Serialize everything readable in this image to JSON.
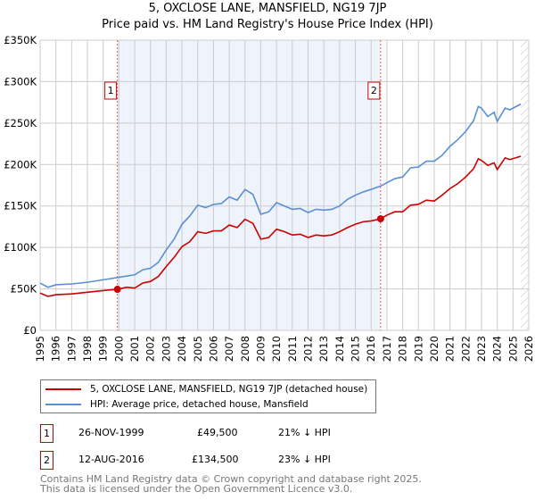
{
  "chart_data": {
    "type": "line",
    "title": "5, OXCLOSE LANE, MANSFIELD, NG19 7JP",
    "subtitle": "Price paid vs. HM Land Registry's House Price Index (HPI)",
    "xlim": [
      1995,
      2026
    ],
    "ylim": [
      0,
      350000
    ],
    "x_ticks": [
      "1995",
      "1996",
      "1997",
      "1998",
      "1999",
      "2000",
      "2001",
      "2002",
      "2003",
      "2004",
      "2005",
      "2006",
      "2007",
      "2008",
      "2009",
      "2010",
      "2011",
      "2012",
      "2013",
      "2014",
      "2015",
      "2016",
      "2017",
      "2018",
      "2019",
      "2020",
      "2021",
      "2022",
      "2023",
      "2024",
      "2025",
      "2026"
    ],
    "y_ticks": [
      {
        "v": 0,
        "label": "£0"
      },
      {
        "v": 50000,
        "label": "£50K"
      },
      {
        "v": 100000,
        "label": "£100K"
      },
      {
        "v": 150000,
        "label": "£150K"
      },
      {
        "v": 200000,
        "label": "£200K"
      },
      {
        "v": 250000,
        "label": "£250K"
      },
      {
        "v": 300000,
        "label": "£300K"
      },
      {
        "v": 350000,
        "label": "£350K"
      }
    ],
    "grid": true,
    "shaded_range": [
      1999.9,
      2016.6
    ],
    "forecast_hatch_from": 2025.5,
    "series": [
      {
        "name": "5, OXCLOSE LANE, MANSFIELD, NG19 7JP (detached house)",
        "color": "#cc0000",
        "x": [
          1995,
          1995.5,
          1996,
          1997,
          1998,
          1999,
          1999.9,
          2000.5,
          2001,
          2001.5,
          2002,
          2002.5,
          2003,
          2003.5,
          2004,
          2004.5,
          2005,
          2005.5,
          2006,
          2006.5,
          2007,
          2007.5,
          2008,
          2008.5,
          2009,
          2009.5,
          2010,
          2010.5,
          2011,
          2011.5,
          2012,
          2012.5,
          2013,
          2013.5,
          2014,
          2014.5,
          2015,
          2015.5,
          2016,
          2016.6,
          2017,
          2017.5,
          2018,
          2018.5,
          2019,
          2019.5,
          2020,
          2020.5,
          2021,
          2021.5,
          2022,
          2022.5,
          2022.8,
          2023,
          2023.4,
          2023.8,
          2024,
          2024.5,
          2024.8,
          2025.5
        ],
        "y": [
          45,
          41,
          43,
          44,
          46,
          48,
          49.5,
          52,
          51,
          57,
          59,
          65,
          77,
          88,
          101,
          107,
          119,
          117,
          120,
          120,
          127,
          124,
          134,
          129,
          110,
          112,
          122,
          119,
          115,
          116,
          112,
          115,
          114,
          115,
          119,
          124,
          128,
          131,
          132,
          134.5,
          139,
          143,
          143,
          151,
          152,
          157,
          156,
          163,
          171,
          177,
          185,
          195,
          207,
          205,
          199,
          202,
          194,
          208,
          206,
          210
        ]
      },
      {
        "name": "HPI: Average price, detached house, Mansfield",
        "color": "#5b8fd4",
        "x": [
          1995,
          1995.5,
          1996,
          1997,
          1998,
          1999,
          2000,
          2001,
          2001.5,
          2002,
          2002.5,
          2003,
          2003.5,
          2004,
          2004.5,
          2005,
          2005.5,
          2006,
          2006.5,
          2007,
          2007.5,
          2008,
          2008.5,
          2009,
          2009.5,
          2010,
          2010.5,
          2011,
          2011.5,
          2012,
          2012.5,
          2013,
          2013.5,
          2014,
          2014.5,
          2015,
          2015.5,
          2016,
          2016.6,
          2017,
          2017.5,
          2018,
          2018.5,
          2019,
          2019.5,
          2020,
          2020.5,
          2021,
          2021.5,
          2022,
          2022.5,
          2022.8,
          2023,
          2023.4,
          2023.8,
          2024,
          2024.5,
          2024.8,
          2025.5
        ],
        "y": [
          57,
          52,
          55,
          56,
          58,
          61,
          64,
          67,
          73,
          75,
          82,
          97,
          110,
          128,
          138,
          151,
          148,
          152,
          153,
          161,
          157,
          170,
          164,
          140,
          143,
          154,
          150,
          146,
          147,
          142,
          146,
          145,
          146,
          150,
          158,
          163,
          167,
          170,
          174,
          178,
          183,
          185,
          196,
          197,
          204,
          204,
          211,
          222,
          230,
          240,
          253,
          270,
          268,
          258,
          263,
          252,
          268,
          266,
          273
        ]
      }
    ],
    "y_units": "thousands GBP",
    "sales": [
      {
        "label": "1",
        "x": 1999.9,
        "date": "26-NOV-1999",
        "price": "£49,500",
        "value": 49.5,
        "hpi": "21% ↓ HPI"
      },
      {
        "label": "2",
        "x": 2016.6,
        "date": "12-AUG-2016",
        "price": "£134,500",
        "value": 134.5,
        "hpi": "23% ↓ HPI"
      }
    ]
  },
  "footer": [
    "Contains HM Land Registry data © Crown copyright and database right 2025.",
    "This data is licensed under the Open Government Licence v3.0."
  ]
}
